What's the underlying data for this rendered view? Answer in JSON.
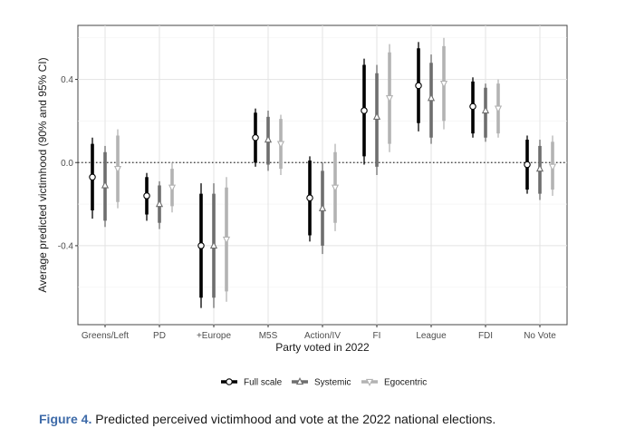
{
  "chart_data": {
    "type": "point-range",
    "ylabel": "Average predicted victimhood (90% and 95% CI)",
    "xlabel": "Party voted in 2022",
    "categories": [
      "Greens/Left",
      "PD",
      "+Europe",
      "M5S",
      "Action/IV",
      "FI",
      "League",
      "FDI",
      "No Vote"
    ],
    "y_ticks": [
      -0.4,
      0.0,
      0.4
    ],
    "y_tick_labels": [
      "-0.4",
      "0.0",
      "0.4"
    ],
    "ylim": [
      -0.78,
      0.66
    ],
    "reference_line": 0,
    "grid": true,
    "legend_position": "bottom",
    "series": [
      {
        "name": "Full scale",
        "color": "#000000",
        "marker": "circle",
        "estimates": [
          -0.07,
          -0.16,
          -0.4,
          0.12,
          -0.17,
          0.25,
          0.37,
          0.27,
          -0.01
        ],
        "ci90": [
          [
            -0.23,
            0.09
          ],
          [
            -0.25,
            -0.07
          ],
          [
            -0.65,
            -0.15
          ],
          [
            0.0,
            0.24
          ],
          [
            -0.35,
            0.01
          ],
          [
            0.03,
            0.47
          ],
          [
            0.19,
            0.55
          ],
          [
            0.14,
            0.39
          ],
          [
            -0.13,
            0.11
          ]
        ],
        "ci95": [
          [
            -0.27,
            0.12
          ],
          [
            -0.28,
            -0.05
          ],
          [
            -0.7,
            -0.1
          ],
          [
            -0.02,
            0.26
          ],
          [
            -0.38,
            0.03
          ],
          [
            -0.01,
            0.5
          ],
          [
            0.15,
            0.58
          ],
          [
            0.12,
            0.41
          ],
          [
            -0.15,
            0.13
          ]
        ]
      },
      {
        "name": "Systemic",
        "color": "#6e6e6e",
        "marker": "triangle-up",
        "estimates": [
          -0.11,
          -0.2,
          -0.4,
          0.11,
          -0.22,
          0.22,
          0.31,
          0.25,
          -0.03
        ],
        "ci90": [
          [
            -0.28,
            0.05
          ],
          [
            -0.29,
            -0.11
          ],
          [
            -0.65,
            -0.15
          ],
          [
            -0.01,
            0.22
          ],
          [
            -0.4,
            -0.04
          ],
          [
            -0.02,
            0.43
          ],
          [
            0.12,
            0.48
          ],
          [
            0.12,
            0.36
          ],
          [
            -0.15,
            0.08
          ]
        ],
        "ci95": [
          [
            -0.31,
            0.08
          ],
          [
            -0.32,
            -0.09
          ],
          [
            -0.7,
            -0.1
          ],
          [
            -0.04,
            0.25
          ],
          [
            -0.44,
            0.0
          ],
          [
            -0.06,
            0.47
          ],
          [
            0.09,
            0.52
          ],
          [
            0.1,
            0.38
          ],
          [
            -0.18,
            0.11
          ]
        ]
      },
      {
        "name": "Egocentric",
        "color": "#b3b3b3",
        "marker": "triangle-down",
        "estimates": [
          -0.03,
          -0.12,
          -0.37,
          0.09,
          -0.12,
          0.31,
          0.38,
          0.26,
          -0.02
        ],
        "ci90": [
          [
            -0.19,
            0.13
          ],
          [
            -0.21,
            -0.03
          ],
          [
            -0.62,
            -0.12
          ],
          [
            -0.03,
            0.21
          ],
          [
            -0.29,
            0.05
          ],
          [
            0.09,
            0.53
          ],
          [
            0.2,
            0.56
          ],
          [
            0.14,
            0.38
          ],
          [
            -0.13,
            0.1
          ]
        ],
        "ci95": [
          [
            -0.22,
            0.16
          ],
          [
            -0.24,
            0.0
          ],
          [
            -0.67,
            -0.07
          ],
          [
            -0.06,
            0.23
          ],
          [
            -0.33,
            0.09
          ],
          [
            0.05,
            0.57
          ],
          [
            0.16,
            0.6
          ],
          [
            0.12,
            0.4
          ],
          [
            -0.16,
            0.13
          ]
        ]
      }
    ]
  },
  "caption": {
    "label": "Figure 4.",
    "text": " Predicted perceived victimhood and vote at the 2022 national elections."
  }
}
